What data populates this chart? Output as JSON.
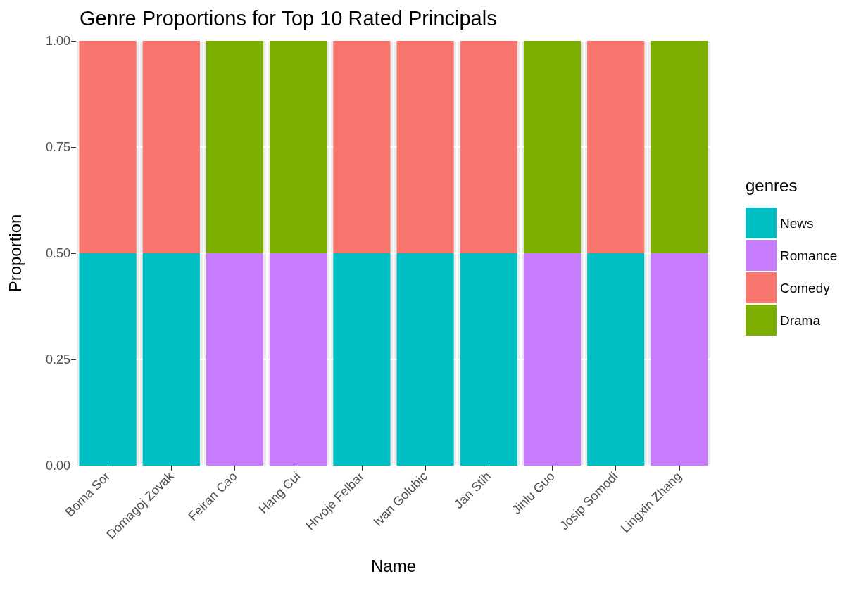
{
  "chart_data": {
    "type": "bar",
    "title": "Genre Proportions for Top 10 Rated Principals",
    "xlabel": "Name",
    "ylabel": "Proportion",
    "legend_title": "genres",
    "categories": [
      "Borna Sor",
      "Domagoj Zovak",
      "Feiran Cao",
      "Hang Cui",
      "Hrvoje Felbar",
      "Ivan Golubic",
      "Jan Stih",
      "Jinlu Guo",
      "Josip Somodi",
      "Lingxin Zhang"
    ],
    "stacked": true,
    "series": [
      {
        "name": "News",
        "color": "#00bfc4",
        "values": [
          0.5,
          0.5,
          0,
          0,
          0.5,
          0.5,
          0.5,
          0,
          0.5,
          0
        ]
      },
      {
        "name": "Romance",
        "color": "#c77cff",
        "values": [
          0,
          0,
          0.5,
          0.5,
          0,
          0,
          0,
          0.5,
          0,
          0.5
        ]
      },
      {
        "name": "Comedy",
        "color": "#f8766d",
        "values": [
          0.5,
          0.5,
          0,
          0,
          0.5,
          0.5,
          0.5,
          0,
          0.5,
          0
        ]
      },
      {
        "name": "Drama",
        "color": "#7cae00",
        "values": [
          0,
          0,
          0.5,
          0.5,
          0,
          0,
          0,
          0.5,
          0,
          0.5
        ]
      }
    ],
    "ylim": [
      0,
      1
    ],
    "yticks": [
      {
        "value": 0,
        "label": "0.00"
      },
      {
        "value": 0.25,
        "label": "0.25"
      },
      {
        "value": 0.5,
        "label": "0.50"
      },
      {
        "value": 0.75,
        "label": "0.75"
      },
      {
        "value": 1,
        "label": "1.00"
      }
    ],
    "grid": true,
    "legend": "right"
  }
}
